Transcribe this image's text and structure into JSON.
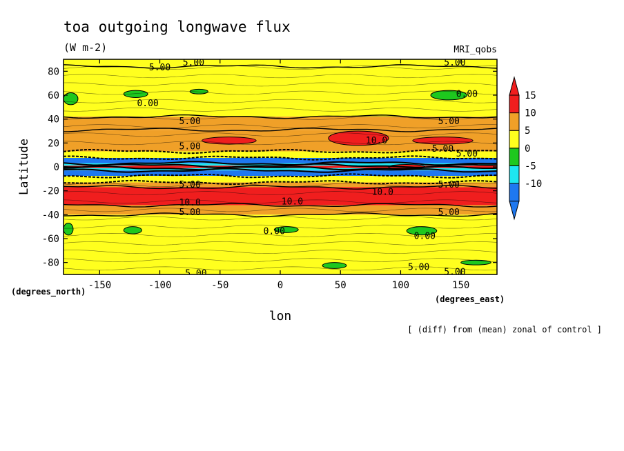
{
  "chart_data": {
    "type": "heatmap",
    "title": "toa outgoing longwave flux",
    "units": "(W m-2)",
    "model_label": "MRI_qobs",
    "xlabel": "lon",
    "ylabel": "Latitude",
    "x_unit_label": "(degrees_east)",
    "y_unit_label": "(degrees_north)",
    "footnote": "[ (diff) from (mean) zonal of control ]",
    "xlim": [
      -180,
      180
    ],
    "ylim": [
      -90,
      90
    ],
    "x_ticks": [
      -150,
      -100,
      -50,
      0,
      50,
      100,
      150
    ],
    "x_tick_labels": [
      "-150",
      "-100",
      "-50",
      "0",
      "50",
      "100",
      "150"
    ],
    "y_ticks": [
      -80,
      -60,
      -40,
      -20,
      0,
      20,
      40,
      60,
      80
    ],
    "y_tick_labels": [
      "-80",
      "-60",
      "-40",
      "-20",
      "0",
      "20",
      "40",
      "60",
      "80"
    ],
    "colorbar": {
      "levels": [
        -15,
        -10,
        -5,
        0,
        5,
        10,
        15
      ],
      "tick_labels": [
        "15",
        "10",
        "5",
        "0",
        "-5",
        "-10"
      ],
      "tick_values": [
        15,
        10,
        5,
        0,
        -5,
        -10
      ],
      "colors": [
        "#1e78f0",
        "#1ee6f0",
        "#1ec81e",
        "#ffff1e",
        "#f0a028",
        "#f01e1e"
      ],
      "extend": "both"
    },
    "latitude_bands": [
      {
        "lat_min": 84,
        "lat_max": 90,
        "value": 2
      },
      {
        "lat_min": 42,
        "lat_max": 84,
        "value": 2
      },
      {
        "lat_min": 31,
        "lat_max": 42,
        "value": 7
      },
      {
        "lat_min": 13,
        "lat_max": 31,
        "value": 7
      },
      {
        "lat_min": 7.5,
        "lat_max": 13,
        "value": 2
      },
      {
        "lat_min": 3,
        "lat_max": 7.5,
        "value": -12
      },
      {
        "lat_min": 1,
        "lat_max": 3,
        "value": -7
      },
      {
        "lat_min": -1,
        "lat_max": 1,
        "value": 17
      },
      {
        "lat_min": -3,
        "lat_max": -1,
        "value": -7
      },
      {
        "lat_min": -7.5,
        "lat_max": -3,
        "value": -12
      },
      {
        "lat_min": -13,
        "lat_max": -7.5,
        "value": 2
      },
      {
        "lat_min": -17,
        "lat_max": -13,
        "value": 7
      },
      {
        "lat_min": -32,
        "lat_max": -17,
        "value": 11
      },
      {
        "lat_min": -40,
        "lat_max": -32,
        "value": 7
      },
      {
        "lat_min": -90,
        "lat_max": -40,
        "value": 2
      }
    ],
    "anomaly_patches": [
      {
        "lon_min": -180,
        "lon_max": -168,
        "lat_min": 52,
        "lat_max": 62,
        "value": -2
      },
      {
        "lon_min": -130,
        "lon_max": -110,
        "lat_min": 58,
        "lat_max": 64,
        "value": -2
      },
      {
        "lon_min": 125,
        "lon_max": 155,
        "lat_min": 56,
        "lat_max": 64,
        "value": -2
      },
      {
        "lon_min": -75,
        "lon_max": -60,
        "lat_min": 61,
        "lat_max": 65,
        "value": -2
      },
      {
        "lon_min": -180,
        "lon_max": -172,
        "lat_min": -57,
        "lat_max": -47,
        "value": -2
      },
      {
        "lon_min": -130,
        "lon_max": -115,
        "lat_min": -56,
        "lat_max": -50,
        "value": -2
      },
      {
        "lon_min": -5,
        "lon_max": 15,
        "lat_min": -55,
        "lat_max": -50,
        "value": -2
      },
      {
        "lon_min": 105,
        "lon_max": 130,
        "lat_min": -57,
        "lat_max": -50,
        "value": -2
      },
      {
        "lon_min": 35,
        "lon_max": 55,
        "lat_min": -85,
        "lat_max": -80,
        "value": -2
      },
      {
        "lon_min": 150,
        "lon_max": 175,
        "lat_min": -82,
        "lat_max": -78,
        "value": -2
      },
      {
        "lon_min": -65,
        "lon_max": -20,
        "lat_min": 19,
        "lat_max": 25,
        "value": 11
      },
      {
        "lon_min": 40,
        "lon_max": 90,
        "lat_min": 18,
        "lat_max": 30,
        "value": 11
      },
      {
        "lon_min": 110,
        "lon_max": 160,
        "lat_min": 19,
        "lat_max": 25,
        "value": 11
      },
      {
        "lon_min": 90,
        "lon_max": 120,
        "lat_min": -2,
        "lat_max": 2,
        "value": 11
      }
    ],
    "contour_labels": [
      {
        "text": "5.00",
        "lon": -100,
        "lat": 83
      },
      {
        "text": "5.00",
        "lon": -72,
        "lat": 87
      },
      {
        "text": "5.00",
        "lon": 145,
        "lat": 87
      },
      {
        "text": "0.00",
        "lon": -110,
        "lat": 53
      },
      {
        "text": "0.00",
        "lon": 155,
        "lat": 61
      },
      {
        "text": "5.00",
        "lon": -75,
        "lat": 38
      },
      {
        "text": "5.00",
        "lon": 140,
        "lat": 38
      },
      {
        "text": "10.0",
        "lon": 80,
        "lat": 22
      },
      {
        "text": "5.00",
        "lon": -75,
        "lat": 17
      },
      {
        "text": "5.00",
        "lon": 135,
        "lat": 15
      },
      {
        "text": "5.00",
        "lon": 155,
        "lat": 11
      },
      {
        "text": "5.00",
        "lon": -75,
        "lat": -15
      },
      {
        "text": "5.00",
        "lon": 140,
        "lat": -15
      },
      {
        "text": "10.0",
        "lon": -75,
        "lat": -30
      },
      {
        "text": "10.0",
        "lon": 10,
        "lat": -29
      },
      {
        "text": "10.0",
        "lon": 85,
        "lat": -21
      },
      {
        "text": "5.00",
        "lon": -75,
        "lat": -38
      },
      {
        "text": "5.00",
        "lon": 140,
        "lat": -38
      },
      {
        "text": "0.00",
        "lon": -5,
        "lat": -54
      },
      {
        "text": "0.00",
        "lon": 120,
        "lat": -58
      },
      {
        "text": "5.00",
        "lon": 115,
        "lat": -84
      },
      {
        "text": "5.00",
        "lon": 145,
        "lat": -88
      },
      {
        "text": "5.00",
        "lon": -70,
        "lat": -89
      }
    ]
  }
}
